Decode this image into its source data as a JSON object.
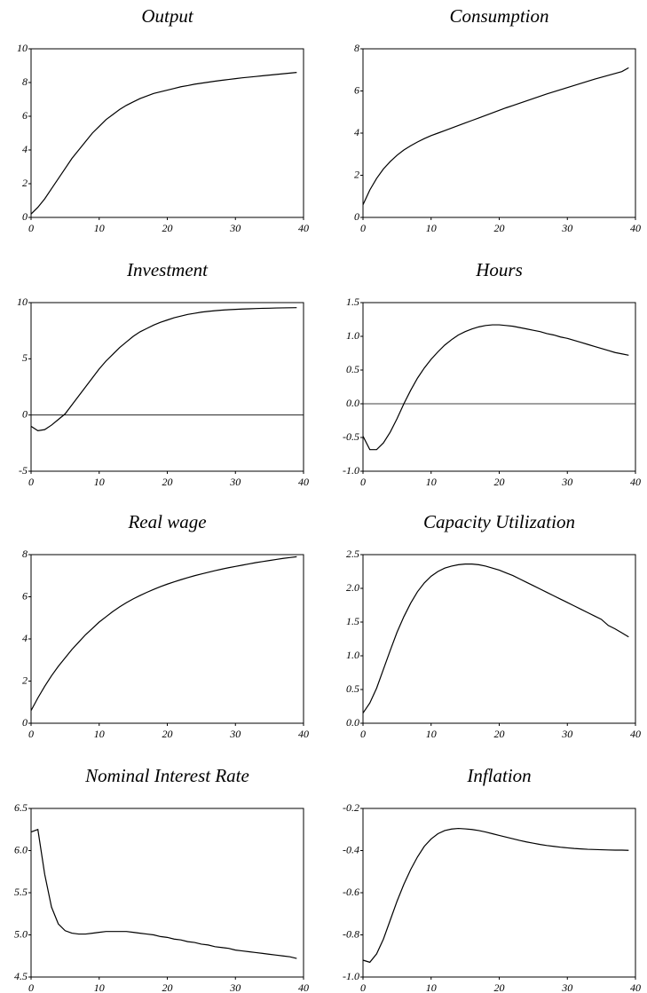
{
  "chart_data": [
    {
      "type": "line",
      "title": "Output",
      "color": "#000000",
      "x": [
        0,
        1,
        2,
        3,
        4,
        5,
        6,
        7,
        8,
        9,
        10,
        11,
        12,
        13,
        14,
        15,
        16,
        17,
        18,
        19,
        20,
        21,
        22,
        23,
        24,
        25,
        26,
        27,
        28,
        29,
        30,
        31,
        32,
        33,
        34,
        35,
        36,
        37,
        38,
        39
      ],
      "values": [
        0.2,
        0.6,
        1.1,
        1.7,
        2.3,
        2.9,
        3.5,
        4.0,
        4.5,
        5.0,
        5.4,
        5.8,
        6.1,
        6.4,
        6.65,
        6.85,
        7.05,
        7.2,
        7.35,
        7.45,
        7.55,
        7.65,
        7.75,
        7.82,
        7.9,
        7.96,
        8.02,
        8.08,
        8.13,
        8.18,
        8.23,
        8.28,
        8.32,
        8.36,
        8.4,
        8.44,
        8.48,
        8.52,
        8.56,
        8.6
      ],
      "xlim": [
        0,
        40
      ],
      "xticks": [
        0,
        10,
        20,
        30,
        40
      ],
      "ylim": [
        0,
        10
      ],
      "yticks": [
        0,
        2,
        4,
        6,
        8,
        10
      ]
    },
    {
      "type": "line",
      "title": "Consumption",
      "color": "#000000",
      "x": [
        0,
        1,
        2,
        3,
        4,
        5,
        6,
        7,
        8,
        9,
        10,
        11,
        12,
        13,
        14,
        15,
        16,
        17,
        18,
        19,
        20,
        21,
        22,
        23,
        24,
        25,
        26,
        27,
        28,
        29,
        30,
        31,
        32,
        33,
        34,
        35,
        36,
        37,
        38,
        39
      ],
      "values": [
        0.6,
        1.3,
        1.85,
        2.3,
        2.65,
        2.95,
        3.2,
        3.4,
        3.58,
        3.74,
        3.88,
        4.0,
        4.12,
        4.24,
        4.36,
        4.48,
        4.6,
        4.72,
        4.84,
        4.96,
        5.08,
        5.2,
        5.31,
        5.42,
        5.53,
        5.64,
        5.75,
        5.86,
        5.96,
        6.06,
        6.16,
        6.26,
        6.36,
        6.46,
        6.56,
        6.65,
        6.74,
        6.83,
        6.92,
        7.1
      ],
      "xlim": [
        0,
        40
      ],
      "xticks": [
        0,
        10,
        20,
        30,
        40
      ],
      "ylim": [
        0,
        8
      ],
      "yticks": [
        0,
        2,
        4,
        6,
        8
      ]
    },
    {
      "type": "line",
      "title": "Investment",
      "color": "#000000",
      "zero_line": true,
      "x": [
        0,
        1,
        2,
        3,
        4,
        5,
        6,
        7,
        8,
        9,
        10,
        11,
        12,
        13,
        14,
        15,
        16,
        17,
        18,
        19,
        20,
        21,
        22,
        23,
        24,
        25,
        26,
        27,
        28,
        29,
        30,
        31,
        32,
        33,
        34,
        35,
        36,
        37,
        38,
        39
      ],
      "values": [
        -1.0,
        -1.4,
        -1.3,
        -0.9,
        -0.4,
        0.1,
        0.9,
        1.7,
        2.5,
        3.3,
        4.1,
        4.8,
        5.4,
        6.0,
        6.5,
        7.0,
        7.4,
        7.7,
        8.0,
        8.25,
        8.45,
        8.65,
        8.8,
        8.95,
        9.05,
        9.15,
        9.22,
        9.28,
        9.33,
        9.37,
        9.4,
        9.43,
        9.45,
        9.47,
        9.49,
        9.5,
        9.52,
        9.53,
        9.54,
        9.55
      ],
      "xlim": [
        0,
        40
      ],
      "xticks": [
        0,
        10,
        20,
        30,
        40
      ],
      "ylim": [
        -5,
        10
      ],
      "yticks": [
        -5,
        0,
        5,
        10
      ]
    },
    {
      "type": "line",
      "title": "Hours",
      "color": "#000000",
      "zero_line": true,
      "x": [
        0,
        1,
        2,
        3,
        4,
        5,
        6,
        7,
        8,
        9,
        10,
        11,
        12,
        13,
        14,
        15,
        16,
        17,
        18,
        19,
        20,
        21,
        22,
        23,
        24,
        25,
        26,
        27,
        28,
        29,
        30,
        31,
        32,
        33,
        34,
        35,
        36,
        37,
        38,
        39
      ],
      "values": [
        -0.48,
        -0.68,
        -0.68,
        -0.58,
        -0.42,
        -0.22,
        0.0,
        0.2,
        0.38,
        0.53,
        0.66,
        0.77,
        0.87,
        0.95,
        1.02,
        1.07,
        1.11,
        1.14,
        1.16,
        1.17,
        1.17,
        1.16,
        1.15,
        1.13,
        1.11,
        1.09,
        1.07,
        1.04,
        1.02,
        0.99,
        0.97,
        0.94,
        0.91,
        0.88,
        0.85,
        0.82,
        0.79,
        0.76,
        0.74,
        0.72
      ],
      "xlim": [
        0,
        40
      ],
      "xticks": [
        0,
        10,
        20,
        30,
        40
      ],
      "ylim": [
        -1,
        1.5
      ],
      "yticks": [
        {
          "value": -1,
          "label": "-1.0"
        },
        -0.5,
        {
          "value": 0,
          "label": "0.0"
        },
        0.5,
        {
          "value": 1,
          "label": "1.0"
        },
        1.5
      ]
    },
    {
      "type": "line",
      "title": "Real wage",
      "color": "#000000",
      "x": [
        0,
        1,
        2,
        3,
        4,
        5,
        6,
        7,
        8,
        9,
        10,
        11,
        12,
        13,
        14,
        15,
        16,
        17,
        18,
        19,
        20,
        21,
        22,
        23,
        24,
        25,
        26,
        27,
        28,
        29,
        30,
        31,
        32,
        33,
        34,
        35,
        36,
        37,
        38,
        39
      ],
      "values": [
        0.6,
        1.2,
        1.75,
        2.25,
        2.7,
        3.1,
        3.5,
        3.85,
        4.2,
        4.5,
        4.8,
        5.05,
        5.3,
        5.52,
        5.72,
        5.9,
        6.06,
        6.21,
        6.35,
        6.48,
        6.6,
        6.71,
        6.81,
        6.91,
        7.0,
        7.08,
        7.16,
        7.24,
        7.31,
        7.38,
        7.44,
        7.5,
        7.56,
        7.62,
        7.67,
        7.72,
        7.77,
        7.82,
        7.86,
        7.9
      ],
      "xlim": [
        0,
        40
      ],
      "xticks": [
        0,
        10,
        20,
        30,
        40
      ],
      "ylim": [
        0,
        8
      ],
      "yticks": [
        0,
        2,
        4,
        6,
        8
      ]
    },
    {
      "type": "line",
      "title": "Capacity Utilization",
      "color": "#000000",
      "x": [
        0,
        1,
        2,
        3,
        4,
        5,
        6,
        7,
        8,
        9,
        10,
        11,
        12,
        13,
        14,
        15,
        16,
        17,
        18,
        19,
        20,
        21,
        22,
        23,
        24,
        25,
        26,
        27,
        28,
        29,
        30,
        31,
        32,
        33,
        34,
        35,
        36,
        37,
        38,
        39
      ],
      "values": [
        0.15,
        0.3,
        0.52,
        0.8,
        1.08,
        1.35,
        1.58,
        1.78,
        1.95,
        2.08,
        2.18,
        2.25,
        2.3,
        2.33,
        2.35,
        2.36,
        2.36,
        2.35,
        2.33,
        2.3,
        2.27,
        2.23,
        2.19,
        2.14,
        2.09,
        2.04,
        1.99,
        1.94,
        1.89,
        1.84,
        1.79,
        1.74,
        1.69,
        1.64,
        1.59,
        1.54,
        1.45,
        1.4,
        1.34,
        1.28
      ],
      "xlim": [
        0,
        40
      ],
      "xticks": [
        0,
        10,
        20,
        30,
        40
      ],
      "ylim": [
        0,
        2.5
      ],
      "yticks": [
        {
          "value": 0,
          "label": "0.0"
        },
        0.5,
        {
          "value": 1,
          "label": "1.0"
        },
        1.5,
        {
          "value": 2,
          "label": "2.0"
        },
        2.5
      ]
    },
    {
      "type": "line",
      "title": "Nominal Interest Rate",
      "color": "#000000",
      "x": [
        0,
        1,
        2,
        3,
        4,
        5,
        6,
        7,
        8,
        9,
        10,
        11,
        12,
        13,
        14,
        15,
        16,
        17,
        18,
        19,
        20,
        21,
        22,
        23,
        24,
        25,
        26,
        27,
        28,
        29,
        30,
        31,
        32,
        33,
        34,
        35,
        36,
        37,
        38,
        39
      ],
      "values": [
        6.22,
        6.25,
        5.72,
        5.33,
        5.13,
        5.05,
        5.02,
        5.01,
        5.01,
        5.02,
        5.03,
        5.04,
        5.04,
        5.04,
        5.04,
        5.03,
        5.02,
        5.01,
        5.0,
        4.98,
        4.97,
        4.95,
        4.94,
        4.92,
        4.91,
        4.89,
        4.88,
        4.86,
        4.85,
        4.84,
        4.82,
        4.81,
        4.8,
        4.79,
        4.78,
        4.77,
        4.76,
        4.75,
        4.74,
        4.72
      ],
      "xlim": [
        0,
        40
      ],
      "xticks": [
        0,
        10,
        20,
        30,
        40
      ],
      "ylim": [
        4.5,
        6.5
      ],
      "yticks": [
        4.5,
        {
          "value": 5,
          "label": "5.0"
        },
        5.5,
        {
          "value": 6,
          "label": "6.0"
        },
        6.5
      ]
    },
    {
      "type": "line",
      "title": "Inflation",
      "color": "#000000",
      "x": [
        0,
        1,
        2,
        3,
        4,
        5,
        6,
        7,
        8,
        9,
        10,
        11,
        12,
        13,
        14,
        15,
        16,
        17,
        18,
        19,
        20,
        21,
        22,
        23,
        24,
        25,
        26,
        27,
        28,
        29,
        30,
        31,
        32,
        33,
        34,
        35,
        36,
        37,
        38,
        39
      ],
      "values": [
        -0.92,
        -0.93,
        -0.89,
        -0.82,
        -0.73,
        -0.64,
        -0.56,
        -0.49,
        -0.43,
        -0.38,
        -0.345,
        -0.32,
        -0.305,
        -0.298,
        -0.295,
        -0.297,
        -0.3,
        -0.305,
        -0.312,
        -0.32,
        -0.328,
        -0.336,
        -0.344,
        -0.352,
        -0.359,
        -0.365,
        -0.371,
        -0.376,
        -0.38,
        -0.384,
        -0.387,
        -0.39,
        -0.392,
        -0.394,
        -0.395,
        -0.396,
        -0.397,
        -0.398,
        -0.398,
        -0.399
      ],
      "xlim": [
        0,
        40
      ],
      "xticks": [
        0,
        10,
        20,
        30,
        40
      ],
      "ylim": [
        -1,
        -0.2
      ],
      "yticks": [
        {
          "value": -1,
          "label": "-1.0"
        },
        -0.8,
        -0.6,
        -0.4,
        -0.2
      ]
    }
  ]
}
